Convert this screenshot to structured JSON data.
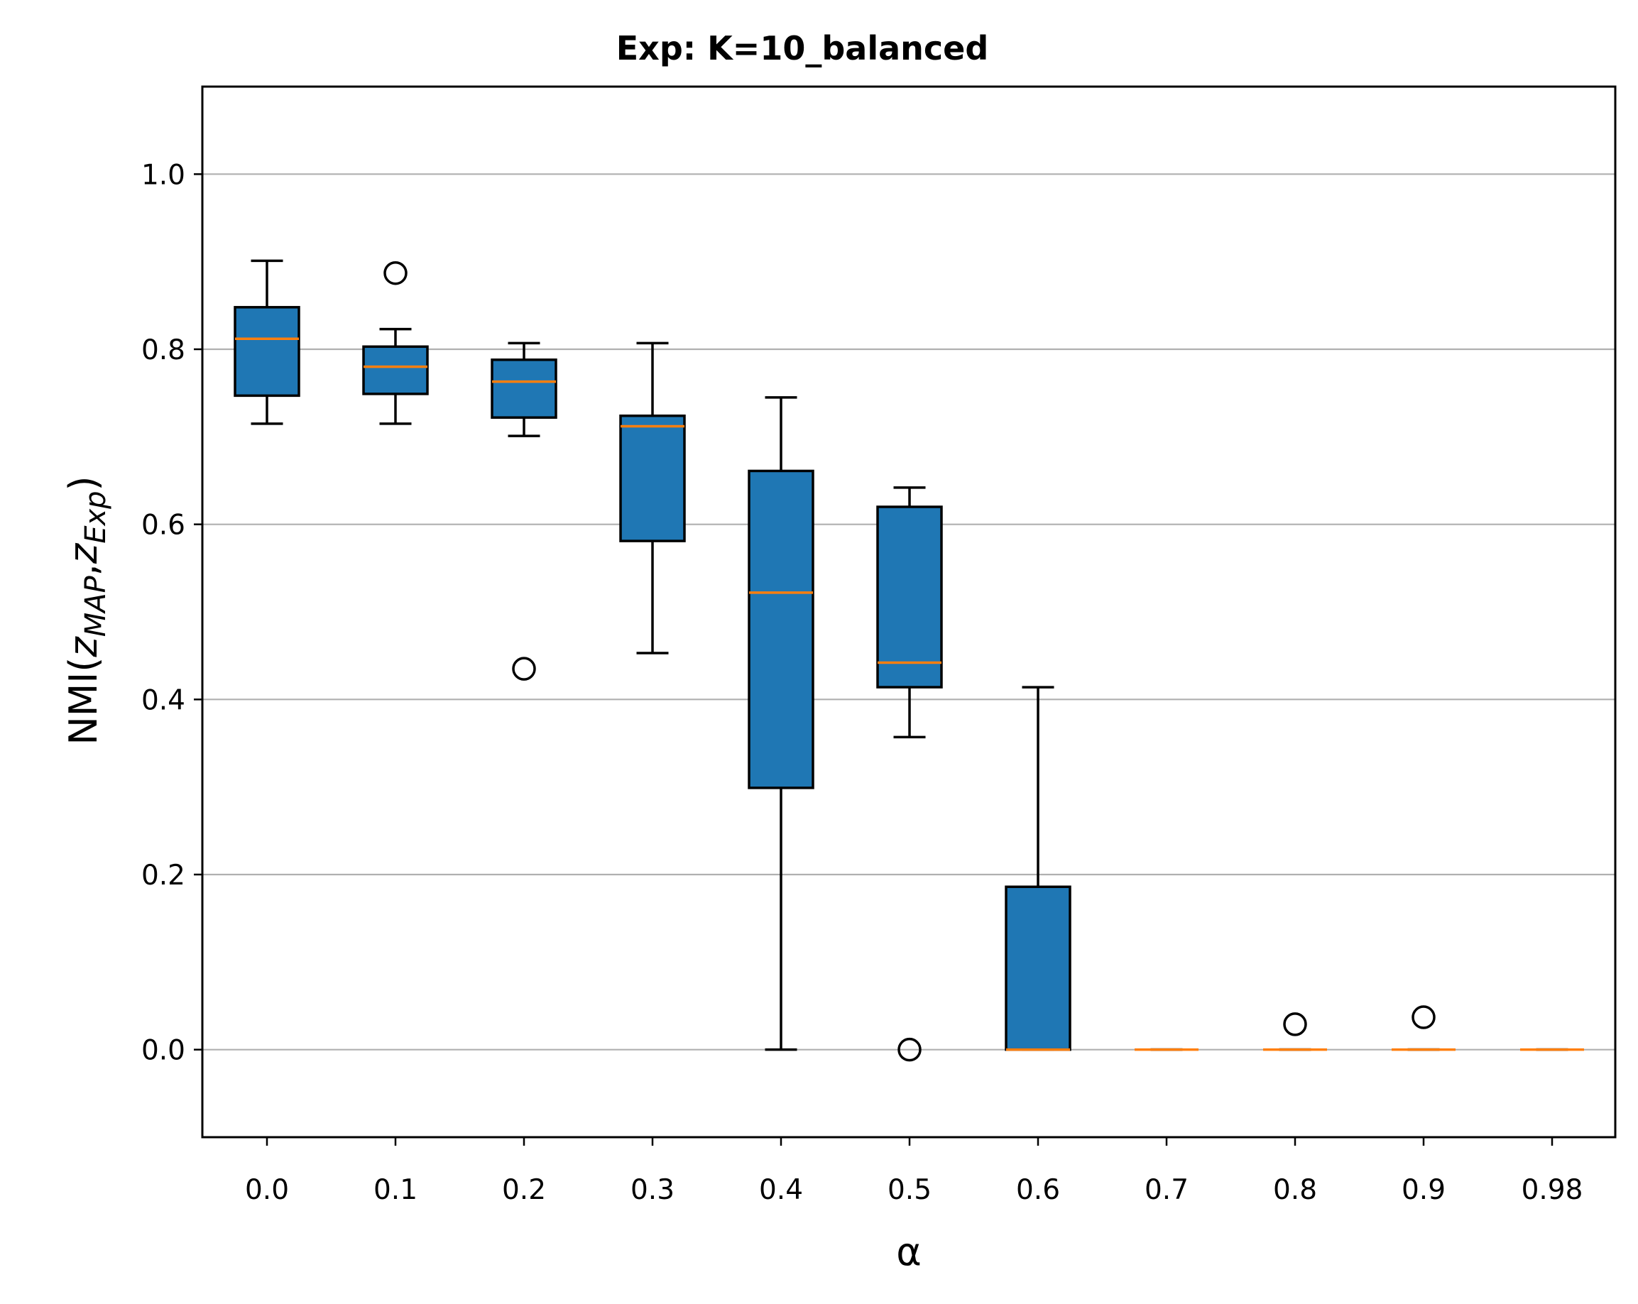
{
  "chart_data": {
    "type": "boxplot",
    "title": "Exp: K=10_balanced",
    "xlabel": "α",
    "ylabel": {
      "prefix": "NMI(",
      "var1": "z",
      "sub1": "MAP",
      "sep": ",",
      "var2": "z",
      "sub2": "Exp",
      "suffix": ")"
    },
    "categories": [
      "0.0",
      "0.1",
      "0.2",
      "0.3",
      "0.4",
      "0.5",
      "0.6",
      "0.7",
      "0.8",
      "0.9",
      "0.98"
    ],
    "ylim": [
      -0.1,
      1.1
    ],
    "yticks": [
      "0.0",
      "0.2",
      "0.4",
      "0.6",
      "0.8",
      "1.0"
    ],
    "ytick_values": [
      0.0,
      0.2,
      0.4,
      0.6,
      0.8,
      1.0
    ],
    "grid": "y",
    "box_color": "#1f77b4",
    "median_color": "#ff7f0e",
    "boxes": [
      {
        "whislo": 0.715,
        "q1": 0.747,
        "med": 0.812,
        "q3": 0.848,
        "whishi": 0.901,
        "fliers": []
      },
      {
        "whislo": 0.715,
        "q1": 0.749,
        "med": 0.78,
        "q3": 0.803,
        "whishi": 0.823,
        "fliers": [
          0.887
        ]
      },
      {
        "whislo": 0.701,
        "q1": 0.722,
        "med": 0.763,
        "q3": 0.788,
        "whishi": 0.807,
        "fliers": [
          0.435
        ]
      },
      {
        "whislo": 0.453,
        "q1": 0.581,
        "med": 0.712,
        "q3": 0.724,
        "whishi": 0.807,
        "fliers": []
      },
      {
        "whislo": 0.0,
        "q1": 0.299,
        "med": 0.522,
        "q3": 0.661,
        "whishi": 0.745,
        "fliers": []
      },
      {
        "whislo": 0.357,
        "q1": 0.414,
        "med": 0.442,
        "q3": 0.62,
        "whishi": 0.642,
        "fliers": [
          0.0
        ]
      },
      {
        "whislo": 0.0,
        "q1": 0.0,
        "med": 0.0,
        "q3": 0.186,
        "whishi": 0.414,
        "fliers": []
      },
      {
        "whislo": 0.0,
        "q1": 0.0,
        "med": 0.0,
        "q3": 0.0,
        "whishi": 0.0,
        "fliers": []
      },
      {
        "whislo": 0.0,
        "q1": 0.0,
        "med": 0.0,
        "q3": 0.0,
        "whishi": 0.0,
        "fliers": [
          0.029
        ]
      },
      {
        "whislo": 0.0,
        "q1": 0.0,
        "med": 0.0,
        "q3": 0.0,
        "whishi": 0.0,
        "fliers": [
          0.037
        ]
      },
      {
        "whislo": 0.0,
        "q1": 0.0,
        "med": 0.0,
        "q3": 0.0,
        "whishi": 0.0,
        "fliers": []
      }
    ]
  }
}
